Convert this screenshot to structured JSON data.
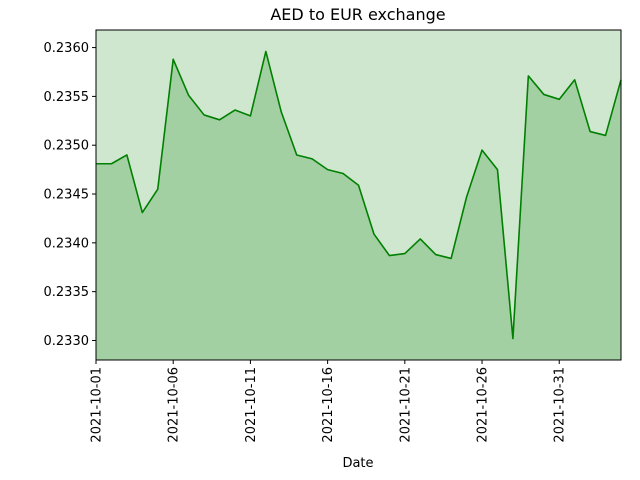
{
  "chart_data": {
    "type": "area",
    "title": "AED to EUR exchange",
    "xlabel": "Date",
    "ylabel": "",
    "x": [
      "2021-10-01",
      "2021-10-02",
      "2021-10-03",
      "2021-10-04",
      "2021-10-05",
      "2021-10-06",
      "2021-10-07",
      "2021-10-08",
      "2021-10-09",
      "2021-10-10",
      "2021-10-11",
      "2021-10-12",
      "2021-10-13",
      "2021-10-14",
      "2021-10-15",
      "2021-10-16",
      "2021-10-17",
      "2021-10-18",
      "2021-10-19",
      "2021-10-20",
      "2021-10-21",
      "2021-10-22",
      "2021-10-23",
      "2021-10-24",
      "2021-10-25",
      "2021-10-26",
      "2021-10-27",
      "2021-10-28",
      "2021-10-29",
      "2021-10-30",
      "2021-10-31",
      "2021-11-01",
      "2021-11-02",
      "2021-11-03",
      "2021-11-04"
    ],
    "series": [
      {
        "values": [
          0.23481,
          0.23481,
          0.2349,
          0.23431,
          0.23455,
          0.23588,
          0.23551,
          0.23531,
          0.23526,
          0.23536,
          0.2353,
          0.23596,
          0.23534,
          0.2349,
          0.23486,
          0.23475,
          0.23471,
          0.23459,
          0.23409,
          0.23387,
          0.23389,
          0.23404,
          0.23388,
          0.23384,
          0.23447,
          0.23495,
          0.23475,
          0.23302,
          0.23571,
          0.23552,
          0.23547,
          0.23567,
          0.23514,
          0.2351,
          0.23567
        ]
      }
    ],
    "xticks": [
      "2021-10-01",
      "2021-10-06",
      "2021-10-11",
      "2021-10-16",
      "2021-10-21",
      "2021-10-26",
      "2021-10-31"
    ],
    "yticks": [
      "0.2330",
      "0.2335",
      "0.2340",
      "0.2345",
      "0.2350",
      "0.2355",
      "0.2360"
    ],
    "ylim": [
      0.2328,
      0.23618
    ],
    "grid": false,
    "colors": {
      "line": "#008000",
      "area_fill": "#a3d0a3",
      "background_fill": "#cfe6cf"
    }
  }
}
